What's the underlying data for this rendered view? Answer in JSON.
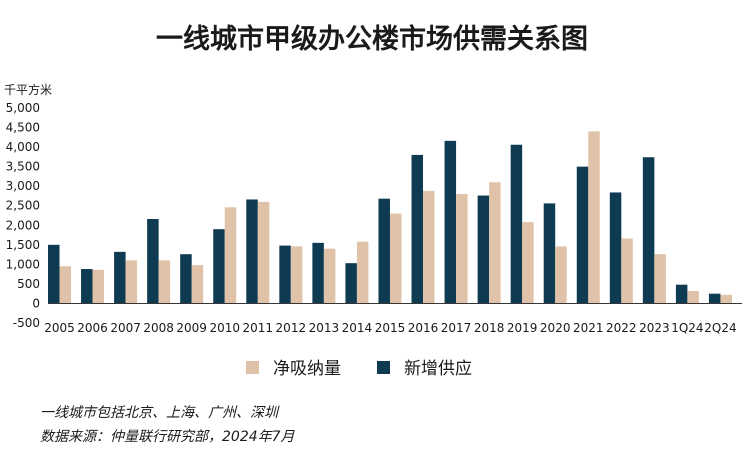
{
  "chart_data": {
    "type": "bar",
    "title": "一线城市甲级办公楼市场供需关系图",
    "ylabel": "千平方米",
    "xlabel": "",
    "ylim": [
      -500,
      5000
    ],
    "yticks": [
      "-500",
      "0",
      "500",
      "1,000",
      "1,500",
      "2,000",
      "2,500",
      "3,000",
      "3,500",
      "4,000",
      "4,500",
      "5,000"
    ],
    "ytick_values": [
      -500,
      0,
      500,
      1000,
      1500,
      2000,
      2500,
      3000,
      3500,
      4000,
      4500,
      5000
    ],
    "categories": [
      "2005",
      "2006",
      "2007",
      "2008",
      "2009",
      "2010",
      "2011",
      "2012",
      "2013",
      "2014",
      "2015",
      "2016",
      "2017",
      "2018",
      "2019",
      "2020",
      "2021",
      "2022",
      "2023",
      "1Q24",
      "2Q24"
    ],
    "series": [
      {
        "name": "净吸纳量",
        "color": "#dfc2a7",
        "values": [
          950,
          860,
          1100,
          1100,
          980,
          2460,
          2600,
          1460,
          1400,
          1580,
          2300,
          2880,
          2800,
          3100,
          2080,
          1460,
          4400,
          1660,
          1260,
          320,
          220
        ]
      },
      {
        "name": "新增供应",
        "color": "#0e3b52",
        "values": [
          1500,
          880,
          1320,
          2160,
          1260,
          1900,
          2660,
          1480,
          1550,
          1030,
          2680,
          3800,
          4160,
          2760,
          4060,
          2560,
          3500,
          2840,
          3740,
          480,
          250
        ]
      }
    ],
    "legend_position": "bottom",
    "grid": false
  },
  "notes": {
    "line1": "一线城市包括北京、上海、广州、深圳",
    "line2": "数据来源：仲量联行研究部，2024年7月"
  }
}
